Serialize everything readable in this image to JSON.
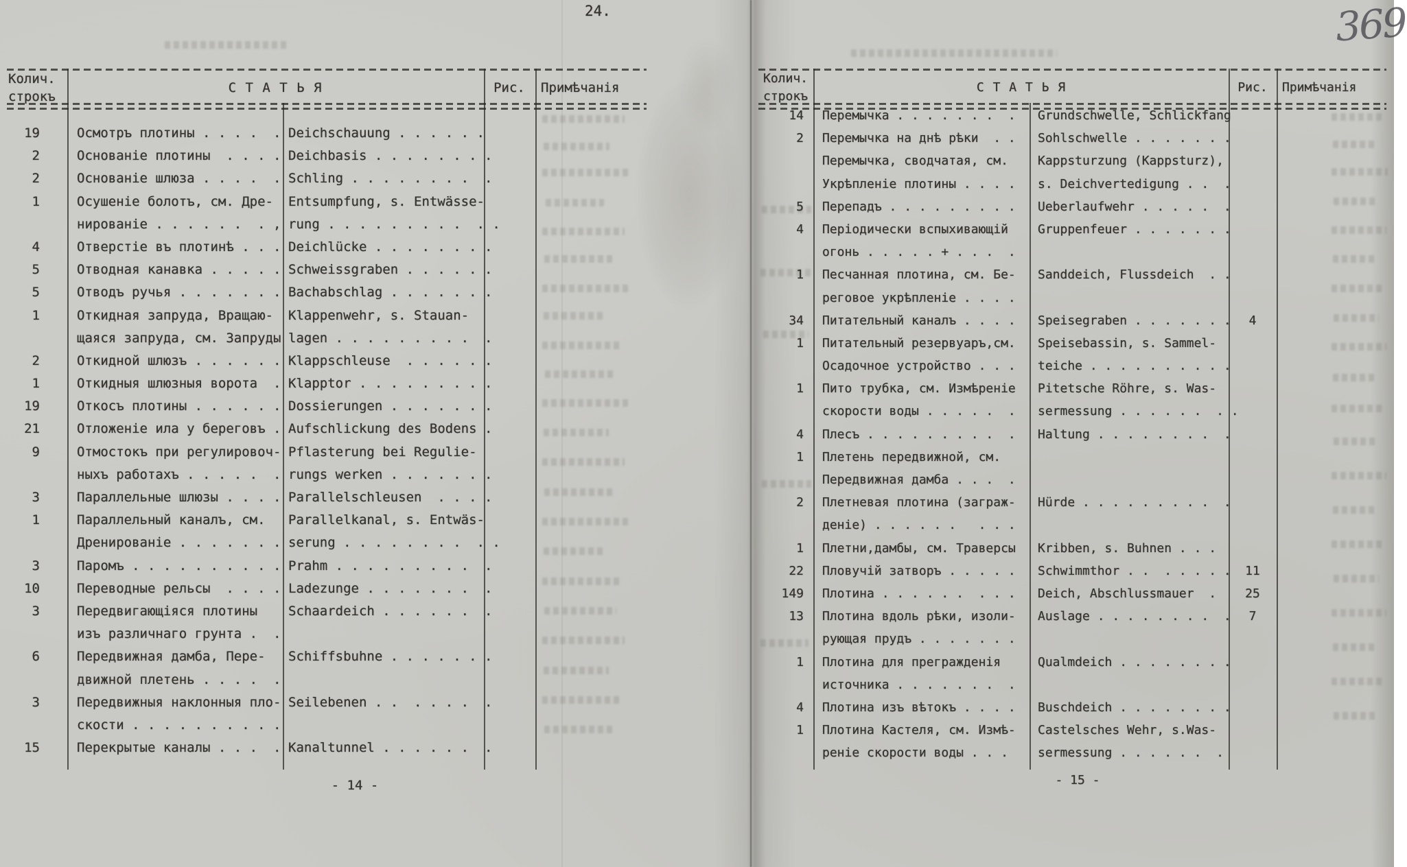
{
  "marks": {
    "top_center": "24.",
    "handwritten_folio": "369"
  },
  "left_page": {
    "header": {
      "count_line1": "Колич.",
      "count_line2": "строкъ",
      "article": "С Т А Т Ь Я",
      "figure": "Рис.",
      "notes": "Примѣчанія"
    },
    "footer": "- 14 -",
    "rows": [
      {
        "count": "19",
        "ru": [
          "Осмотръ плотины . . . .  ."
        ],
        "de": [
          "Deichschauung . . . . . ."
        ],
        "fig": ""
      },
      {
        "count": "2",
        "ru": [
          "Основаніе плотины  . . . ."
        ],
        "de": [
          "Deichbasis . . . . . . . ."
        ],
        "fig": ""
      },
      {
        "count": "2",
        "ru": [
          "Основаніе шлюза . . . .  ."
        ],
        "de": [
          "Schling . . . . . . . .  ."
        ],
        "fig": ""
      },
      {
        "count": "1",
        "ru": [
          "Осушеніе болотъ, см. Дре-",
          "нированіе . . . . . .  . ,"
        ],
        "de": [
          "Entsumpfung, s. Entwässe-",
          "rung . . . . . . . . .  . ."
        ],
        "fig": ""
      },
      {
        "count": "4",
        "ru": [
          "Отверстіе въ плотинѣ . . ."
        ],
        "de": [
          "Deichlücke . . . . . . . ."
        ],
        "fig": ""
      },
      {
        "count": "5",
        "ru": [
          "Отводная канавка . . . . ."
        ],
        "de": [
          "Schweissgraben . . . . . ."
        ],
        "fig": ""
      },
      {
        "count": "5",
        "ru": [
          "Отводъ ручья . . . . . . ."
        ],
        "de": [
          "Bachabschlag . . . . . . ."
        ],
        "fig": ""
      },
      {
        "count": "1",
        "ru": [
          "Откидная запруда, Вращаю-",
          "щаяся запруда, см. Запруды"
        ],
        "de": [
          "Klappenwehr, s. Stauan-",
          "lagen . . . . . . . . .  ."
        ],
        "fig": ""
      },
      {
        "count": "2",
        "ru": [
          "Откидной шлюзъ . . . . . ."
        ],
        "de": [
          "Klappschleuse  . . . . . ."
        ],
        "fig": ""
      },
      {
        "count": "1",
        "ru": [
          "Откидныя шлюзныя ворота  ."
        ],
        "de": [
          "Klapptor . . . . . . . . ."
        ],
        "fig": ""
      },
      {
        "count": "19",
        "ru": [
          "Откосъ плотины . . . . . ."
        ],
        "de": [
          "Dossierungen . . . . . . ."
        ],
        "fig": ""
      },
      {
        "count": "21",
        "ru": [
          "Отложеніе ила у береговъ ."
        ],
        "de": [
          "Aufschlickung des Bodens ."
        ],
        "fig": ""
      },
      {
        "count": "9",
        "ru": [
          "Отмостокъ при регулировоч-",
          "ныхъ работахъ . . . . .  ."
        ],
        "de": [
          "Pflasterung bei Regulie-",
          "rungs werken . . . . . . ."
        ],
        "fig": ""
      },
      {
        "count": "3",
        "ru": [
          "Параллельные шлюзы . . . ."
        ],
        "de": [
          "Parallelschleusen  . . . ."
        ],
        "fig": ""
      },
      {
        "count": "1",
        "ru": [
          "Параллельный каналъ, см.",
          "Дренированіе . . . . . . ."
        ],
        "de": [
          "Parallelkanal, s. Entwäs-",
          "serung . . . . . . . .  . ."
        ],
        "fig": ""
      },
      {
        "count": "3",
        "ru": [
          "Паромъ . . . . . . . . . ."
        ],
        "de": [
          "Prahm . . . . . . . . .  ."
        ],
        "fig": ""
      },
      {
        "count": "10",
        "ru": [
          "Переводные рельсы  . . . ."
        ],
        "de": [
          "Ladezunge . . . . . . .  ."
        ],
        "fig": ""
      },
      {
        "count": "3",
        "ru": [
          "Передвигающіяся плотины",
          "изъ различнаго грунта .  ."
        ],
        "de": [
          "Schaardeich . . . . . .  ."
        ],
        "fig": ""
      },
      {
        "count": "6",
        "ru": [
          "Передвижная дамба, Пере-",
          "движной плетень . . . .  ."
        ],
        "de": [
          "Schiffsbuhne . . . . . . ."
        ],
        "fig": ""
      },
      {
        "count": "3",
        "ru": [
          "Передвижныя наклонныя пло-",
          "скости . . . . . . . . . ."
        ],
        "de": [
          "Seilebenen . .  . . . .  ."
        ],
        "fig": ""
      },
      {
        "count": "15",
        "ru": [
          "Перекрытые каналы . . .  ."
        ],
        "de": [
          "Kanaltunnel . . . . . .  ."
        ],
        "fig": ""
      }
    ]
  },
  "right_page": {
    "header": {
      "count_line1": "Колич.",
      "count_line2": "строкъ",
      "article": "С Т А Т Ь Я",
      "figure": "Рис.",
      "notes": "Примѣчанія"
    },
    "footer": "- 15 -",
    "rows": [
      {
        "count": "14",
        "ru": [
          "Перемычка . . . . . . .  ."
        ],
        "de": [
          "Grundschwelle, Schlickfang"
        ],
        "fig": ""
      },
      {
        "count": "2",
        "ru": [
          "Перемычка на днѣ рѣки  . ."
        ],
        "de": [
          "Sohlschwelle . . . . . . ."
        ],
        "fig": ""
      },
      {
        "count": "",
        "ru": [
          "Перемычка, сводчатая, см.",
          "Укрѣпленіе плотины . . . ."
        ],
        "de": [
          "Kappsturzung (Kappsturz),",
          "s. Deichvertedigung . .  ."
        ],
        "fig": ""
      },
      {
        "count": "5",
        "ru": [
          "Перепадъ . . . . . . . . ."
        ],
        "de": [
          "Ueberlaufwehr . . . . .  ."
        ],
        "fig": ""
      },
      {
        "count": "4",
        "ru": [
          "Періодически вспыхивающій",
          "огонь . . . . . + . . .  ."
        ],
        "de": [
          "Gruppenfeuer . . . . . . ."
        ],
        "fig": ""
      },
      {
        "count": "1",
        "ru": [
          "Песчанная плотина, см. Бе-",
          "реговое укрѣпленіе . . . ."
        ],
        "de": [
          "Sanddeich, Flussdeich  . ."
        ],
        "fig": ""
      },
      {
        "count": "34",
        "ru": [
          "Питательный каналъ . . . ."
        ],
        "de": [
          "Speisegraben . . . . . . ."
        ],
        "fig": "4"
      },
      {
        "count": "1",
        "ru": [
          "Питательный резервуаръ,см.",
          "Осадочное устройство . . ."
        ],
        "de": [
          "Speisebassin, s. Sammel-",
          "teiche . . . . . . . . . ."
        ],
        "fig": ""
      },
      {
        "count": "1",
        "ru": [
          "Пито трубка, см. Измѣреніе",
          "скорости воды . . . . .  ."
        ],
        "de": [
          "Pitetsche Röhre, s. Was-",
          "sermessung . . . . . .  . ."
        ],
        "fig": ""
      },
      {
        "count": "4",
        "ru": [
          "Плесъ . . . . . . . . .  ."
        ],
        "de": [
          "Haltung . . . . . . . .  ."
        ],
        "fig": ""
      },
      {
        "count": "1",
        "ru": [
          "Плетень передвижной, см.",
          "Передвижная дамба . . .  ."
        ],
        "de": [],
        "fig": ""
      },
      {
        "count": "2",
        "ru": [
          "Плетневая плотина (заграж-",
          "деніе) . . . . . .   . . ."
        ],
        "de": [
          "Hürde . . . . . . . . .  ."
        ],
        "fig": ""
      },
      {
        "count": "1",
        "ru": [
          "Плетни,дамбы, см. Траверсы"
        ],
        "de": [
          "Kribben, s. Buhnen . . ."
        ],
        "fig": ""
      },
      {
        "count": "22",
        "ru": [
          "Пловучій затворъ . . . . ."
        ],
        "de": [
          "Schwimmthor . .  . . . . ."
        ],
        "fig": "11"
      },
      {
        "count": "149",
        "ru": [
          "Плотина . . . . . .  . . ."
        ],
        "de": [
          "Deich, Abschlussmauer  ."
        ],
        "fig": "25"
      },
      {
        "count": "13",
        "ru": [
          "Плотина вдоль рѣки, изоли-",
          "рующая прудъ . . . . . . ."
        ],
        "de": [
          "Auslage . . . . . . . .  ."
        ],
        "fig": "7"
      },
      {
        "count": "1",
        "ru": [
          "Плотина для прегражденія",
          "источника . . . . . . .  ."
        ],
        "de": [
          "Qualmdeich . . . . . . . ."
        ],
        "fig": ""
      },
      {
        "count": "4",
        "ru": [
          "Плотина изъ вѣтокъ . . . ."
        ],
        "de": [
          "Buschdeich . . . . . . . ."
        ],
        "fig": ""
      },
      {
        "count": "1",
        "ru": [
          "Плотина Кастеля, см. Измѣ-",
          "реніе скорости воды . . ."
        ],
        "de": [
          "Castelsches Wehr, s.Was-",
          "sermessung . . . . . .  ."
        ],
        "fig": ""
      }
    ]
  }
}
